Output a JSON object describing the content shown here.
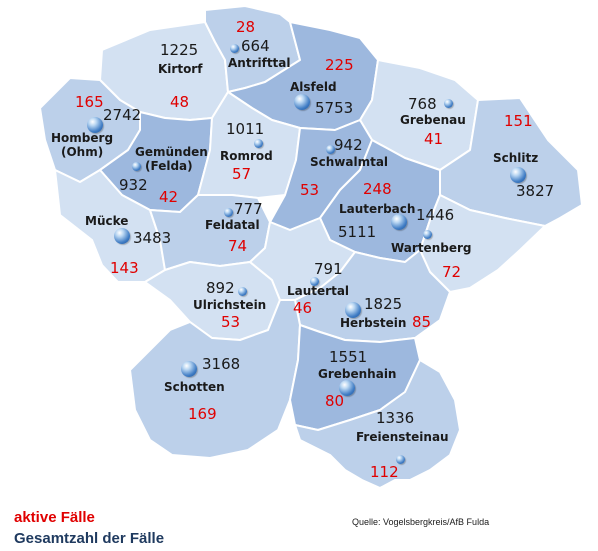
{
  "colors": {
    "active": "#e00000",
    "total": "#1a1a1a",
    "region_light": "#d3e1f2",
    "region_mid": "#bcd0ea",
    "region_dark": "#9db8de"
  },
  "legend": {
    "active_label": "aktive Fälle",
    "total_label": "Gesamtzahl der Fälle"
  },
  "source": "Quelle: Vogelsbergkreis/AfB Fulda",
  "municipalities": [
    {
      "id": "kirtorf",
      "name": "Kirtorf",
      "total": "1225",
      "active": "48"
    },
    {
      "id": "antrifttal",
      "name": "Antrifttal",
      "total": "664",
      "active": "28"
    },
    {
      "id": "alsfeld",
      "name": "Alsfeld",
      "total": "5753",
      "active": "225"
    },
    {
      "id": "grebenau",
      "name": "Grebenau",
      "total": "768",
      "active": "41"
    },
    {
      "id": "homberg",
      "name": "Homberg (Ohm)",
      "name_line1": "Homberg",
      "name_line2": "(Ohm)",
      "total": "2742",
      "active": "165"
    },
    {
      "id": "gemuenden",
      "name": "Gemünden (Felda)",
      "name_line1": "Gemünden",
      "name_line2": "(Felda)",
      "total": "932",
      "active": "42"
    },
    {
      "id": "romrod",
      "name": "Romrod",
      "total": "1011",
      "active": "57"
    },
    {
      "id": "schwalmtal",
      "name": "Schwalmtal",
      "total": "942",
      "active": "53"
    },
    {
      "id": "schlitz",
      "name": "Schlitz",
      "total": "3827",
      "active": "151"
    },
    {
      "id": "muecke",
      "name": "Mücke",
      "total": "3483",
      "active": "143"
    },
    {
      "id": "feldatal",
      "name": "Feldatal",
      "total": "777",
      "active": "74"
    },
    {
      "id": "lauterbach",
      "name": "Lauterbach",
      "total": "5111",
      "active": "248"
    },
    {
      "id": "wartenberg",
      "name": "Wartenberg",
      "total": "1446",
      "active": "72"
    },
    {
      "id": "ulrichstein",
      "name": "Ulrichstein",
      "total": "892",
      "active": "53"
    },
    {
      "id": "lautertal",
      "name": "Lautertal",
      "total": "791",
      "active": "46"
    },
    {
      "id": "herbstein",
      "name": "Herbstein",
      "total": "1825",
      "active": "85"
    },
    {
      "id": "schotten",
      "name": "Schotten",
      "total": "3168",
      "active": "169"
    },
    {
      "id": "grebenhain",
      "name": "Grebenhain",
      "total": "1551",
      "active": "80"
    },
    {
      "id": "freiensteinau",
      "name": "Freiensteinau",
      "total": "1336",
      "active": "112"
    }
  ]
}
